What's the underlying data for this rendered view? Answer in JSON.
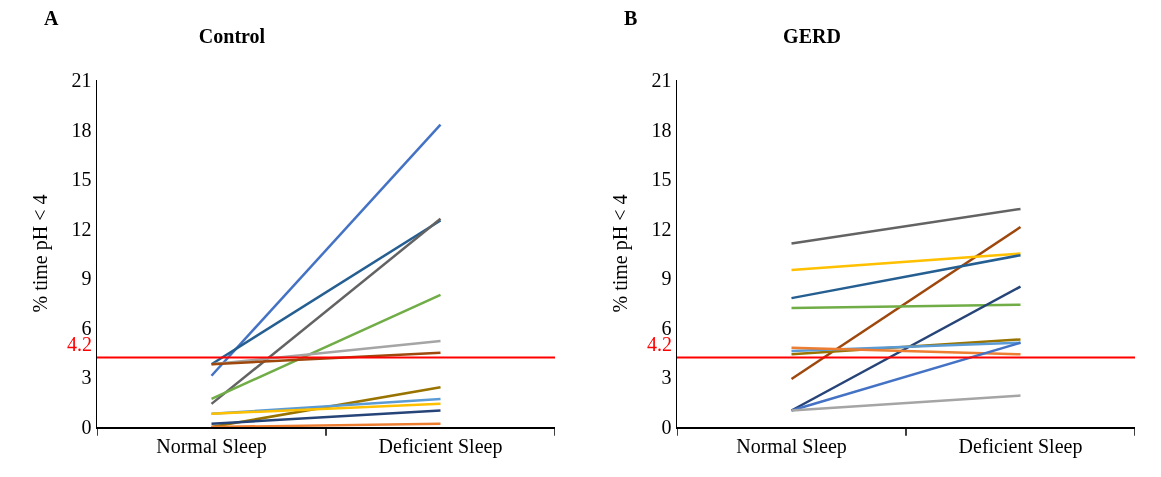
{
  "chart_data": [
    {
      "type": "line",
      "title": "Control",
      "annotations": [
        "A"
      ],
      "ylabel": "% time pH < 4",
      "categories": [
        "Normal Sleep",
        "Deficient Sleep"
      ],
      "ylim": [
        0,
        21
      ],
      "yticks": [
        0,
        3,
        6,
        9,
        12,
        15,
        18,
        21
      ],
      "grid": false,
      "marker": "none",
      "line_style": "solid",
      "series": [
        {
          "color": "#4472c4",
          "values": [
            3.1,
            18.3
          ]
        },
        {
          "color": "#255e91",
          "values": [
            3.8,
            12.5
          ]
        },
        {
          "color": "#636363",
          "values": [
            1.4,
            12.6
          ]
        },
        {
          "color": "#70ad47",
          "values": [
            1.7,
            8.0
          ]
        },
        {
          "color": "#a5a5a5",
          "values": [
            3.8,
            5.2
          ]
        },
        {
          "color": "#9e480e",
          "values": [
            3.8,
            4.5
          ]
        },
        {
          "color": "#997300",
          "values": [
            0,
            2.4
          ]
        },
        {
          "color": "#5b9bd5",
          "values": [
            0.8,
            1.7
          ]
        },
        {
          "color": "#ffc000",
          "values": [
            0.8,
            1.4
          ]
        },
        {
          "color": "#264478",
          "values": [
            0.2,
            1.0
          ]
        },
        {
          "color": "#ed7d31",
          "values": [
            0,
            0.2
          ]
        }
      ],
      "ref_lines": [
        {
          "axis": "y",
          "value": 4.2,
          "label": "4.2",
          "color": "#ff0000"
        }
      ]
    },
    {
      "type": "line",
      "title": "GERD",
      "annotations": [
        "B"
      ],
      "ylabel": "% time pH < 4",
      "categories": [
        "Normal Sleep",
        "Deficient Sleep"
      ],
      "ylim": [
        0,
        21
      ],
      "yticks": [
        0,
        3,
        6,
        9,
        12,
        15,
        18,
        21
      ],
      "grid": false,
      "marker": "none",
      "line_style": "solid",
      "series": [
        {
          "color": "#636363",
          "values": [
            11.1,
            13.2
          ]
        },
        {
          "color": "#9e480e",
          "values": [
            2.9,
            12.1
          ]
        },
        {
          "color": "#ffc000",
          "values": [
            9.5,
            10.5
          ]
        },
        {
          "color": "#255e91",
          "values": [
            7.8,
            10.4
          ]
        },
        {
          "color": "#70ad47",
          "values": [
            7.2,
            7.4
          ]
        },
        {
          "color": "#264478",
          "values": [
            1.0,
            8.5
          ]
        },
        {
          "color": "#997300",
          "values": [
            4.4,
            5.3
          ]
        },
        {
          "color": "#5b9bd5",
          "values": [
            4.6,
            5.1
          ]
        },
        {
          "color": "#ed7d31",
          "values": [
            4.8,
            4.4
          ]
        },
        {
          "color": "#4472c4",
          "values": [
            1.0,
            5.1
          ]
        },
        {
          "color": "#a5a5a5",
          "values": [
            1.0,
            1.9
          ]
        }
      ],
      "ref_lines": [
        {
          "axis": "y",
          "value": 4.2,
          "label": "4.2",
          "color": "#ff0000"
        }
      ]
    }
  ]
}
